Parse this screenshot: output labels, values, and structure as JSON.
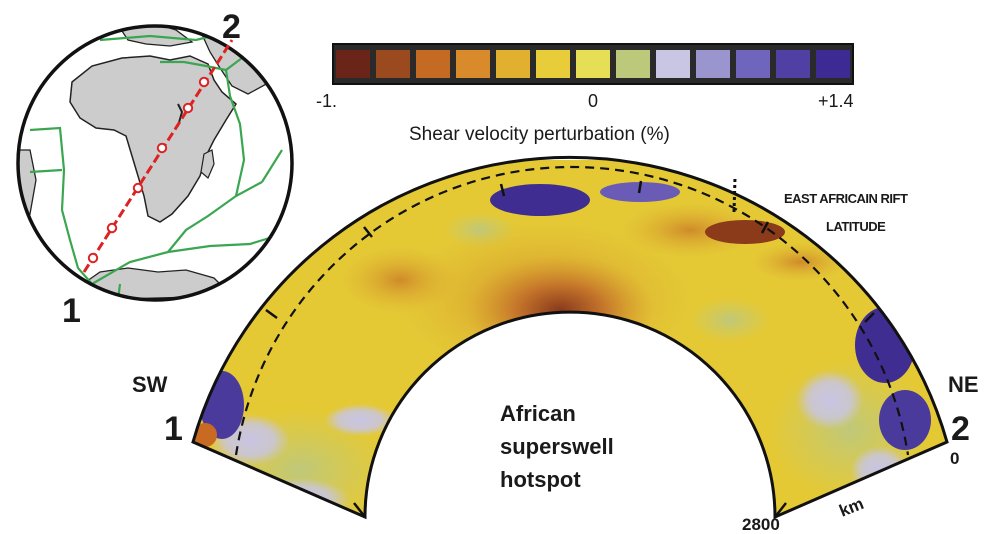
{
  "markers": {
    "start": "1",
    "end": "2"
  },
  "directions": {
    "southwest": "SW",
    "northeast": "NE"
  },
  "colorbar": {
    "min_label": "-1.",
    "mid_label": "0",
    "max_label": "+1.4",
    "title": "Shear velocity perturbation (%)",
    "colors": [
      "#6b2418",
      "#9a4a1e",
      "#c46a22",
      "#d98a2a",
      "#e2b02f",
      "#e8cc3a",
      "#e6df55",
      "#bcc97a",
      "#c9c6e4",
      "#9b95cf",
      "#7065bc",
      "#5140a4",
      "#3d2b93"
    ]
  },
  "annotations": {
    "rift_line1": "EAST AFRICAIN RIFT",
    "rift_line2": "LATITUDE",
    "hotspot_line1": "African",
    "hotspot_line2": "superswell",
    "hotspot_line3": "hotspot"
  },
  "depth_axis": {
    "unit": "km",
    "surface_label": "0",
    "bottom_label": "2800"
  }
}
